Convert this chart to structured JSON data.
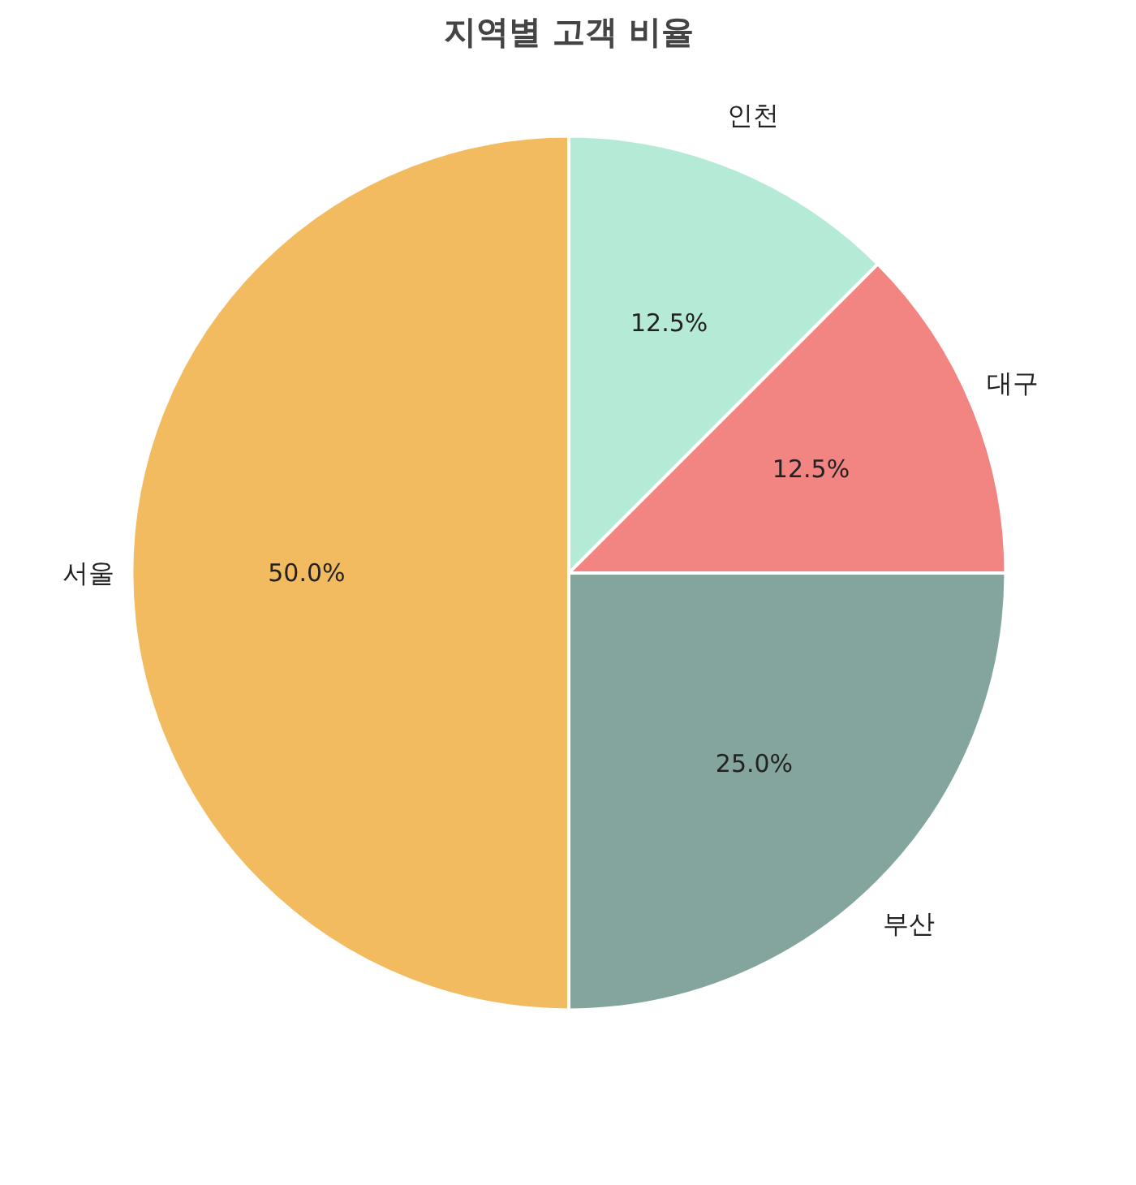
{
  "chart_data": {
    "type": "pie",
    "title": "지역별 고객 비율",
    "categories": [
      "서울",
      "부산",
      "대구",
      "인천"
    ],
    "values": [
      50,
      25,
      12.5,
      12.5
    ],
    "colors": [
      "#f3bb5f",
      "#84a59d",
      "#f28482",
      "#b5ead7"
    ],
    "value_labels": [
      "50.0%",
      "25.0%",
      "12.5%",
      "12.5%"
    ]
  }
}
